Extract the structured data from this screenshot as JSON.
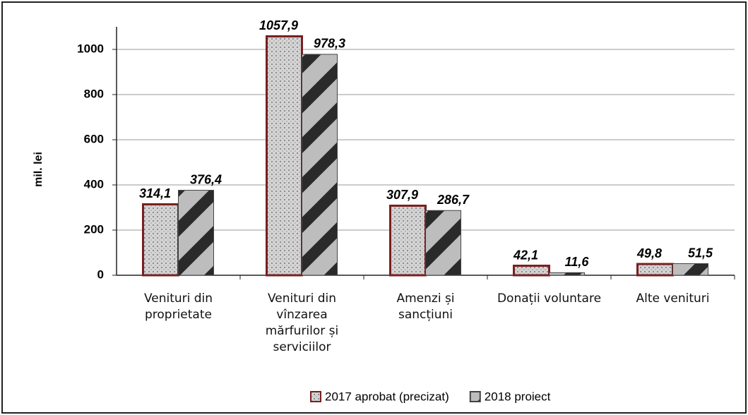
{
  "chart_data": {
    "type": "bar",
    "ylabel": "mil. lei",
    "categories": [
      "Venituri din proprietate",
      "Venituri din vînzarea mărfurilor și serviciilor",
      "Amenzi și sancțiuni",
      "Donații voluntare",
      "Alte venituri"
    ],
    "series": [
      {
        "name": "2017 aprobat (precizat)",
        "color": "#c8c8c8",
        "values": [
          314.1,
          1057.9,
          307.9,
          42.1,
          49.8
        ],
        "value_labels": [
          "314,1",
          "1057,9",
          "307,9",
          "42,1",
          "49,8"
        ]
      },
      {
        "name": "2018 proiect",
        "color": "#555555",
        "values": [
          376.4,
          978.3,
          286.7,
          11.6,
          51.5
        ],
        "value_labels": [
          "376,4",
          "978,3",
          "286,7",
          "11,6",
          "51,5"
        ]
      }
    ],
    "ylim": [
      0,
      1100
    ],
    "yticks": [
      0,
      200,
      400,
      600,
      800,
      1000
    ],
    "grid": true,
    "legend": "bottom"
  }
}
